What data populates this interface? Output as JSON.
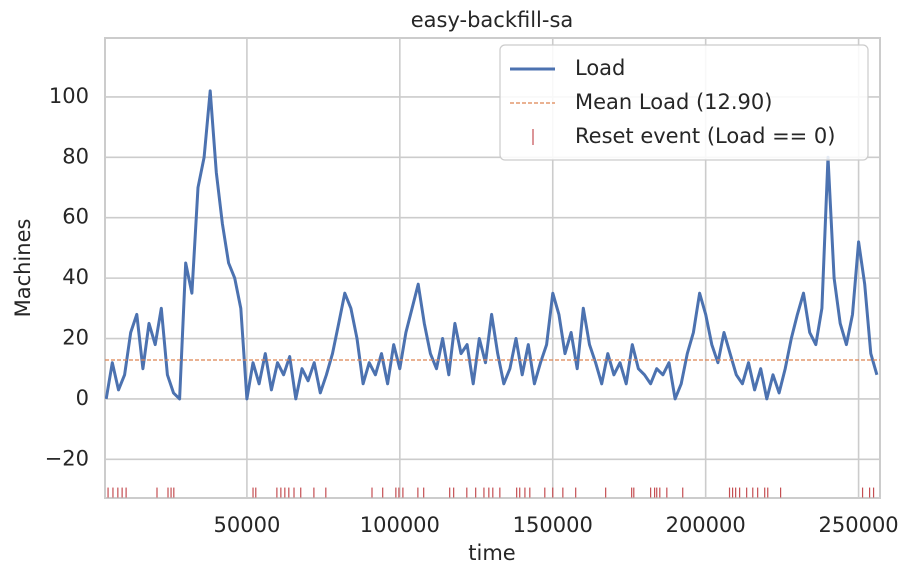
{
  "chart_data": {
    "type": "line",
    "title": "easy-backfill-sa",
    "x_label": "time",
    "y_label": "Machines",
    "xlim": [
      3600,
      257000
    ],
    "ylim": [
      -32.8,
      119.5
    ],
    "xticks": [
      50000,
      100000,
      150000,
      200000,
      250000
    ],
    "yticks": [
      {
        "value": -20,
        "label": "−20"
      },
      0,
      20,
      40,
      60,
      80,
      100
    ],
    "grid": true,
    "legend": "upper right",
    "series": [
      {
        "name": "Load",
        "color": "#4c72b0",
        "kind": "line",
        "x": [
          4000,
          6000,
          8000,
          10000,
          12000,
          14000,
          16000,
          18000,
          20000,
          22000,
          24000,
          26000,
          28000,
          30000,
          32000,
          34000,
          36000,
          38000,
          40000,
          42000,
          44000,
          46000,
          48000,
          50000,
          52000,
          54000,
          56000,
          58000,
          60000,
          62000,
          64000,
          66000,
          68000,
          70000,
          72000,
          74000,
          76000,
          78000,
          80000,
          82000,
          84000,
          86000,
          88000,
          90000,
          92000,
          94000,
          96000,
          98000,
          100000,
          102000,
          104000,
          106000,
          108000,
          110000,
          112000,
          114000,
          116000,
          118000,
          120000,
          122000,
          124000,
          126000,
          128000,
          130000,
          132000,
          134000,
          136000,
          138000,
          140000,
          142000,
          144000,
          146000,
          148000,
          150000,
          152000,
          154000,
          156000,
          158000,
          160000,
          162000,
          164000,
          166000,
          168000,
          170000,
          172000,
          174000,
          176000,
          178000,
          180000,
          182000,
          184000,
          186000,
          188000,
          190000,
          192000,
          194000,
          196000,
          198000,
          200000,
          202000,
          204000,
          206000,
          208000,
          210000,
          212000,
          214000,
          216000,
          218000,
          220000,
          222000,
          224000,
          226000,
          228000,
          230000,
          232000,
          234000,
          236000,
          238000,
          240000,
          242000,
          244000,
          246000,
          248000,
          250000,
          252000,
          254000,
          256000
        ],
        "values": [
          0,
          12,
          3,
          8,
          22,
          28,
          10,
          25,
          18,
          30,
          8,
          2,
          0,
          45,
          35,
          70,
          80,
          102,
          75,
          58,
          45,
          40,
          30,
          0,
          12,
          5,
          15,
          3,
          12,
          8,
          14,
          0,
          10,
          6,
          12,
          2,
          8,
          15,
          25,
          35,
          30,
          20,
          5,
          12,
          8,
          15,
          5,
          18,
          10,
          22,
          30,
          38,
          25,
          15,
          10,
          20,
          8,
          25,
          15,
          18,
          5,
          20,
          12,
          28,
          15,
          5,
          10,
          20,
          8,
          18,
          5,
          12,
          18,
          35,
          28,
          15,
          22,
          10,
          30,
          18,
          12,
          5,
          15,
          8,
          12,
          5,
          18,
          10,
          8,
          5,
          10,
          8,
          12,
          0,
          5,
          15,
          22,
          35,
          28,
          18,
          12,
          22,
          15,
          8,
          5,
          12,
          3,
          10,
          0,
          8,
          2,
          10,
          20,
          28,
          35,
          22,
          18,
          30,
          80,
          40,
          25,
          18,
          28,
          52,
          38,
          15,
          8
        ]
      },
      {
        "name": "Mean Load (12.90)",
        "color": "#dd8452",
        "kind": "hline",
        "values": [
          12.9
        ]
      },
      {
        "name": "Reset event (Load == 0)",
        "color": "#c44e52",
        "kind": "event",
        "y": -31,
        "x": [
          4600,
          6200,
          7800,
          9200,
          10500,
          20600,
          24200,
          25200,
          26100,
          52000,
          52900,
          59800,
          61100,
          62400,
          63700,
          65400,
          67600,
          71900,
          75800,
          90900,
          94400,
          98700,
          99700,
          101000,
          105900,
          107800,
          116300,
          117600,
          121900,
          124800,
          127500,
          129100,
          130400,
          132700,
          138200,
          139200,
          140900,
          142500,
          147400,
          150000,
          153300,
          157500,
          167300,
          175800,
          176500,
          182000,
          183300,
          184000,
          185000,
          187300,
          192500,
          207800,
          208800,
          209800,
          211100,
          213400,
          215400,
          217000,
          219300,
          220300,
          224500,
          251300,
          253600,
          254900
        ]
      }
    ]
  }
}
